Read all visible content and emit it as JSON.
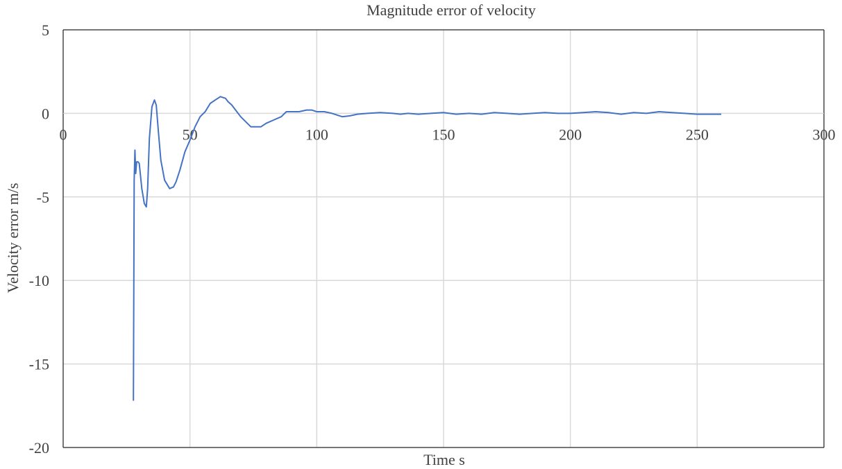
{
  "chart_data": {
    "type": "line",
    "title": "Magnitude error of velocity",
    "xlabel": "Time  s",
    "ylabel": "Velocity error  m/s",
    "xlim": [
      0,
      300
    ],
    "ylim": [
      -20,
      5
    ],
    "x_ticks": [
      0,
      50,
      100,
      150,
      200,
      250,
      300
    ],
    "y_ticks": [
      5,
      0,
      -5,
      -10,
      -15,
      -20
    ],
    "grid": true,
    "legend": "none",
    "colors": {
      "line": "#4472C4",
      "grid": "#D9D9D9",
      "axis": "#000000",
      "text": "#404040"
    },
    "series": [
      {
        "x": [
          27.7,
          28.0,
          28.3,
          28.6,
          29.0,
          29.5,
          30.0,
          31.0,
          32.0,
          32.8,
          33.3,
          34.0,
          35.0,
          36.0,
          36.7,
          37.5,
          38.5,
          40.0,
          42.0,
          43.5,
          44.5,
          46.0,
          48.0,
          50.0,
          52.0,
          54.0,
          56.0,
          58.0,
          60.0,
          62.0,
          64.0,
          65.0,
          66.5,
          68.0,
          70.0,
          72.0,
          74.0,
          76.0,
          78.0,
          80.0,
          83.0,
          86.0,
          88.0,
          90.0,
          93.0,
          96.0,
          98.0,
          100.0,
          103.0,
          106.0,
          108.0,
          110.0,
          113.0,
          116.0,
          120.0,
          125.0,
          130.0,
          133.0,
          136.0,
          140.0,
          145.0,
          150.0,
          155.0,
          160.0,
          165.0,
          170.0,
          175.0,
          180.0,
          185.0,
          190.0,
          195.0,
          200.0,
          205.0,
          210.0,
          215.0,
          220.0,
          225.0,
          230.0,
          235.0,
          240.0,
          245.0,
          250.0,
          255.0,
          259.5
        ],
        "y": [
          -17.2,
          -4.0,
          -2.2,
          -3.6,
          -2.9,
          -2.9,
          -3.0,
          -4.5,
          -5.4,
          -5.6,
          -4.5,
          -1.5,
          0.4,
          0.8,
          0.5,
          -1.0,
          -2.8,
          -4.0,
          -4.5,
          -4.4,
          -4.1,
          -3.4,
          -2.3,
          -1.6,
          -0.8,
          -0.2,
          0.1,
          0.6,
          0.8,
          1.0,
          0.9,
          0.7,
          0.5,
          0.2,
          -0.2,
          -0.5,
          -0.8,
          -0.8,
          -0.8,
          -0.6,
          -0.4,
          -0.2,
          0.1,
          0.1,
          0.1,
          0.2,
          0.2,
          0.1,
          0.1,
          0.0,
          -0.1,
          -0.2,
          -0.15,
          -0.05,
          0.0,
          0.05,
          0.0,
          -0.05,
          0.0,
          -0.05,
          0.0,
          0.05,
          -0.05,
          0.0,
          -0.05,
          0.05,
          0.0,
          -0.05,
          0.0,
          0.05,
          0.0,
          0.0,
          0.05,
          0.1,
          0.05,
          -0.05,
          0.05,
          0.0,
          0.1,
          0.05,
          0.0,
          -0.05,
          -0.05,
          -0.05
        ]
      }
    ]
  }
}
